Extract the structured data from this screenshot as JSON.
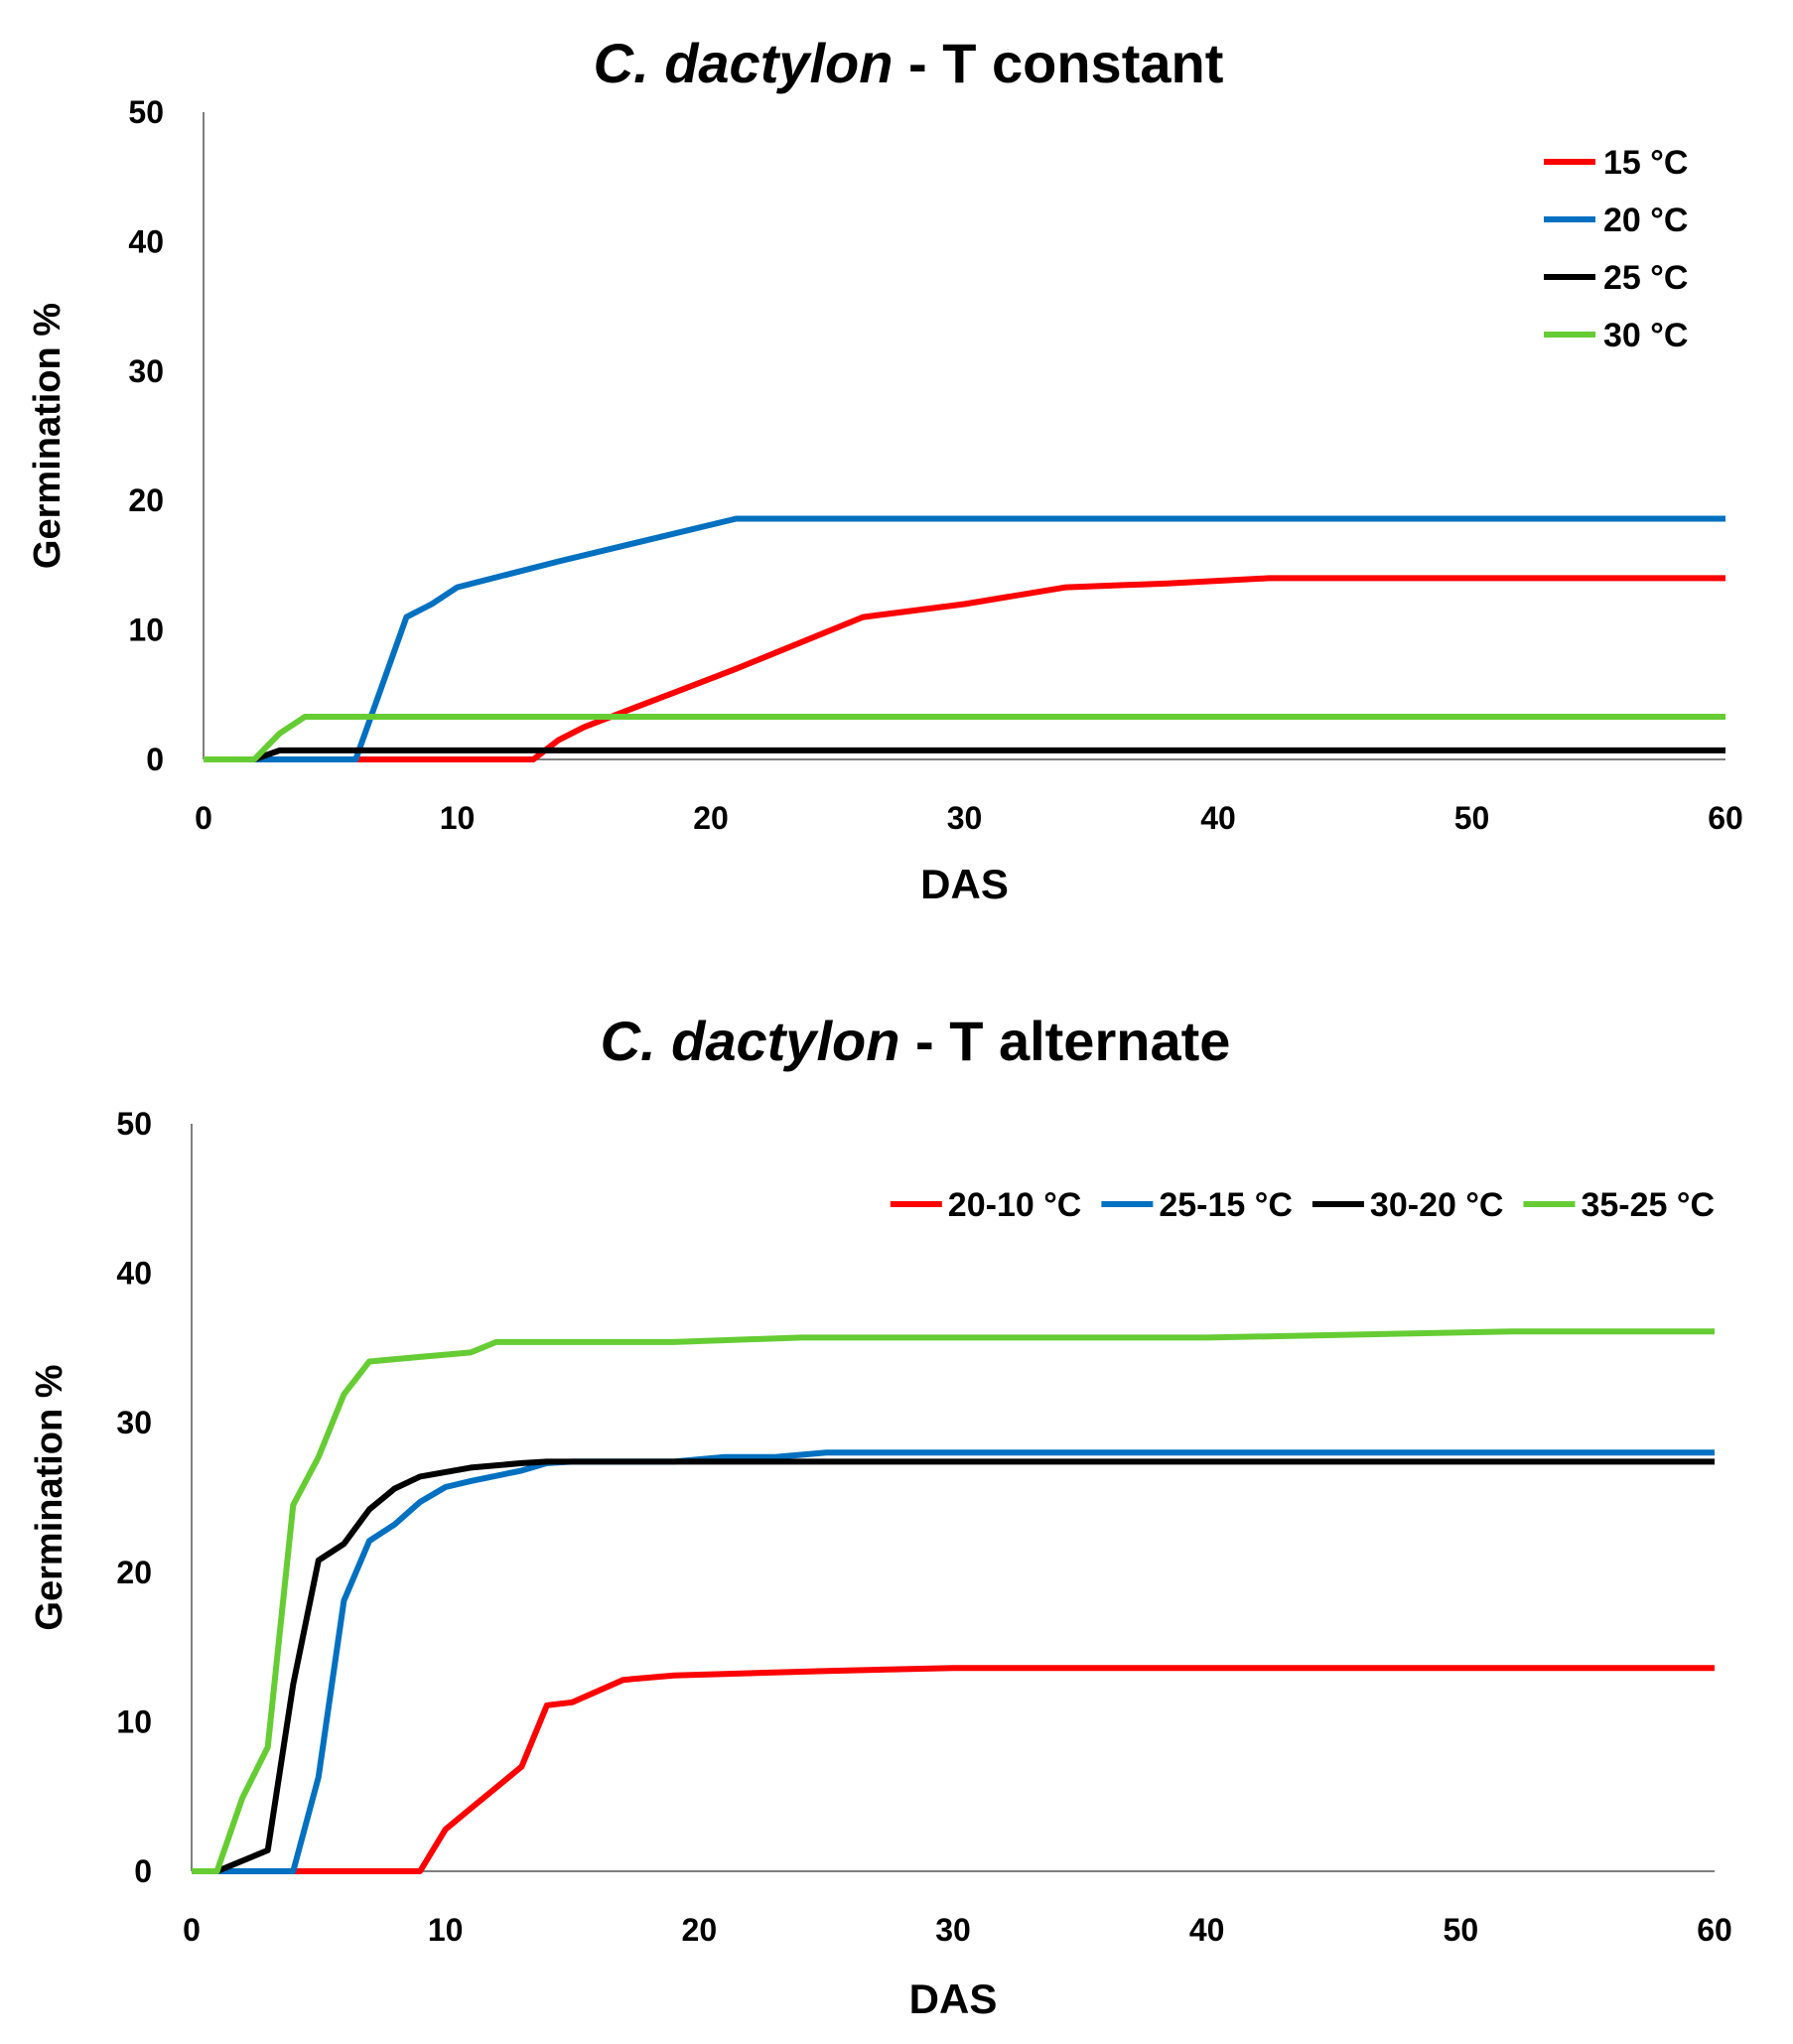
{
  "chart_data": [
    {
      "type": "line",
      "title_italic": "C. dactylon",
      "title_rest": " - T constant",
      "xlabel": "DAS",
      "ylabel": "Germination %",
      "xlim": [
        0,
        60
      ],
      "ylim": [
        0,
        50
      ],
      "xticks": [
        "0",
        "10",
        "20",
        "30",
        "40",
        "50",
        "60"
      ],
      "yticks": [
        "0",
        "10",
        "20",
        "30",
        "40",
        "50"
      ],
      "legend_position": "top-right",
      "legend_layout": "vertical",
      "series": [
        {
          "name": "15 °C",
          "color": "#ff0000",
          "x": [
            0,
            13,
            14,
            15,
            17,
            19,
            21,
            26,
            30,
            34,
            38,
            42,
            60
          ],
          "y": [
            0,
            0,
            1.5,
            2.5,
            4,
            5.5,
            7,
            11,
            12,
            13.3,
            13.6,
            14,
            14
          ]
        },
        {
          "name": "20 °C",
          "color": "#0070c0",
          "x": [
            0,
            6,
            7,
            8,
            9,
            10,
            14,
            21,
            60
          ],
          "y": [
            0,
            0,
            5.5,
            11,
            12,
            13.3,
            15.3,
            18.6,
            18.6
          ]
        },
        {
          "name": "25 °C",
          "color": "#000000",
          "x": [
            0,
            2,
            3,
            60
          ],
          "y": [
            0,
            0,
            0.7,
            0.7
          ]
        },
        {
          "name": "30 °C",
          "color": "#66cc33",
          "x": [
            0,
            2,
            3,
            4,
            60
          ],
          "y": [
            0,
            0,
            2,
            3.3,
            3.3
          ]
        }
      ]
    },
    {
      "type": "line",
      "title_italic": "C. dactylon",
      "title_rest": " - T alternate",
      "xlabel": "DAS",
      "ylabel": "Germination %",
      "xlim": [
        0,
        60
      ],
      "ylim": [
        0,
        50
      ],
      "xticks": [
        "0",
        "10",
        "20",
        "30",
        "40",
        "50",
        "60"
      ],
      "yticks": [
        "0",
        "10",
        "20",
        "30",
        "40",
        "50"
      ],
      "legend_position": "top-right",
      "legend_layout": "horizontal",
      "series": [
        {
          "name": "20-10 °C",
          "color": "#ff0000",
          "x": [
            0,
            9,
            10,
            11,
            12,
            13,
            14,
            15,
            17,
            19,
            21,
            25,
            30,
            60
          ],
          "y": [
            0,
            0,
            2.8,
            4.2,
            5.6,
            7,
            11.1,
            11.3,
            12.8,
            13.1,
            13.2,
            13.4,
            13.6,
            13.6
          ]
        },
        {
          "name": "25-15 °C",
          "color": "#0070c0",
          "x": [
            0,
            4,
            5,
            6,
            7,
            8,
            9,
            10,
            11,
            13,
            14,
            15,
            17,
            19,
            21,
            23,
            25,
            60
          ],
          "y": [
            0,
            0,
            6.3,
            18.1,
            22.1,
            23.2,
            24.7,
            25.7,
            26.1,
            26.8,
            27.3,
            27.4,
            27.4,
            27.4,
            27.7,
            27.7,
            28,
            28
          ]
        },
        {
          "name": "30-20 °C",
          "color": "#000000",
          "x": [
            1,
            2,
            3,
            4,
            5,
            6,
            7,
            8,
            9,
            11,
            13,
            14,
            60
          ],
          "y": [
            0,
            0.7,
            1.4,
            12.5,
            20.8,
            21.9,
            24.2,
            25.6,
            26.4,
            27,
            27.3,
            27.4,
            27.4
          ]
        },
        {
          "name": "35-25 °C",
          "color": "#66cc33",
          "x": [
            0,
            1,
            2,
            3,
            4,
            5,
            6,
            7,
            9,
            11,
            12,
            17,
            19,
            24,
            40,
            52,
            60
          ],
          "y": [
            0,
            0,
            4.9,
            8.3,
            24.5,
            27.7,
            31.9,
            34.1,
            34.4,
            34.7,
            35.4,
            35.4,
            35.4,
            35.7,
            35.7,
            36.1,
            36.1
          ]
        }
      ]
    }
  ]
}
